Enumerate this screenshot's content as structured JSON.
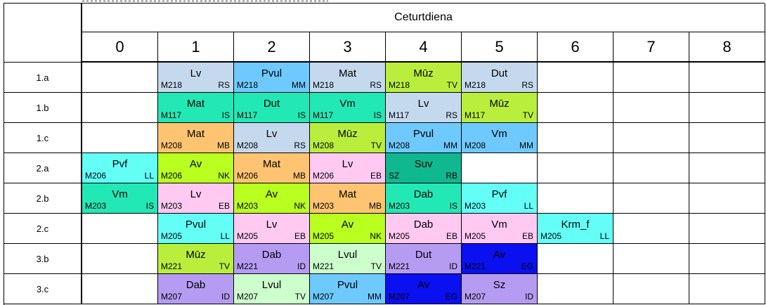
{
  "day": "Ceturtdiena",
  "periods": [
    "0",
    "1",
    "2",
    "3",
    "4",
    "5",
    "6",
    "7",
    "8"
  ],
  "colors": {
    "Lv": "#c5d9ee",
    "Pvul": "#6ec9ff",
    "Mat": "#c5d9ee",
    "Muz": "#b9ef3c",
    "Dut": "#c5d9ee",
    "mint": "#22e8b6",
    "orange": "#ffc471",
    "cyan": "#63fff7",
    "lime": "#b9ff1f",
    "pink": "#ffc9f2",
    "teal": "#10b890",
    "lavender": "#b59cf2",
    "paleGreen": "#ccffcc",
    "blue": "#0a10f0"
  },
  "classes": [
    {
      "name": "1.a",
      "lessons": [
        {
          "p": 1,
          "subj": "Lv",
          "room": "M218",
          "teacher": "RS",
          "color": "#c5d9ee"
        },
        {
          "p": 2,
          "subj": "Pvul",
          "room": "M218",
          "teacher": "MM",
          "color": "#6ec9ff"
        },
        {
          "p": 3,
          "subj": "Mat",
          "room": "M218",
          "teacher": "RS",
          "color": "#c5d9ee"
        },
        {
          "p": 4,
          "subj": "Mūz",
          "room": "M218",
          "teacher": "TV",
          "color": "#b9ef3c"
        },
        {
          "p": 5,
          "subj": "Dut",
          "room": "M218",
          "teacher": "RS",
          "color": "#c5d9ee"
        }
      ]
    },
    {
      "name": "1.b",
      "lessons": [
        {
          "p": 1,
          "subj": "Mat",
          "room": "M117",
          "teacher": "IS",
          "color": "#22e8b6"
        },
        {
          "p": 2,
          "subj": "Dut",
          "room": "M117",
          "teacher": "IS",
          "color": "#22e8b6"
        },
        {
          "p": 3,
          "subj": "Vm",
          "room": "M117",
          "teacher": "IS",
          "color": "#22e8b6"
        },
        {
          "p": 4,
          "subj": "Lv",
          "room": "M117",
          "teacher": "RS",
          "color": "#c5d9ee"
        },
        {
          "p": 5,
          "subj": "Mūz",
          "room": "M117",
          "teacher": "TV",
          "color": "#b9ef3c"
        }
      ]
    },
    {
      "name": "1.c",
      "lessons": [
        {
          "p": 1,
          "subj": "Mat",
          "room": "M208",
          "teacher": "MB",
          "color": "#ffc471"
        },
        {
          "p": 2,
          "subj": "Lv",
          "room": "M208",
          "teacher": "RS",
          "color": "#c5d9ee"
        },
        {
          "p": 3,
          "subj": "Mūz",
          "room": "M208",
          "teacher": "TV",
          "color": "#b9ef3c"
        },
        {
          "p": 4,
          "subj": "Pvul",
          "room": "M208",
          "teacher": "MM",
          "color": "#6ec9ff"
        },
        {
          "p": 5,
          "subj": "Vm",
          "room": "M208",
          "teacher": "MM",
          "color": "#6ec9ff"
        }
      ]
    },
    {
      "name": "2.a",
      "lessons": [
        {
          "p": 0,
          "subj": "Pvf",
          "room": "M206",
          "teacher": "LL",
          "color": "#63fff7"
        },
        {
          "p": 1,
          "subj": "Av",
          "room": "M206",
          "teacher": "NK",
          "color": "#b9ff1f"
        },
        {
          "p": 2,
          "subj": "Mat",
          "room": "M206",
          "teacher": "MB",
          "color": "#ffc471"
        },
        {
          "p": 3,
          "subj": "Lv",
          "room": "M206",
          "teacher": "EB",
          "color": "#ffc9f2"
        },
        {
          "p": 4,
          "subj": "Suv",
          "room": "SZ",
          "teacher": "RB",
          "color": "#10b890"
        }
      ]
    },
    {
      "name": "2.b",
      "lessons": [
        {
          "p": 0,
          "subj": "Vm",
          "room": "M203",
          "teacher": "IS",
          "color": "#22e8b6"
        },
        {
          "p": 1,
          "subj": "Lv",
          "room": "M203",
          "teacher": "EB",
          "color": "#ffc9f2"
        },
        {
          "p": 2,
          "subj": "Av",
          "room": "M203",
          "teacher": "NK",
          "color": "#b9ff1f"
        },
        {
          "p": 3,
          "subj": "Mat",
          "room": "M203",
          "teacher": "MB",
          "color": "#ffc471"
        },
        {
          "p": 4,
          "subj": "Dab",
          "room": "M203",
          "teacher": "IS",
          "color": "#22e8b6"
        },
        {
          "p": 5,
          "subj": "Pvf",
          "room": "M203",
          "teacher": "LL",
          "color": "#63fff7"
        }
      ]
    },
    {
      "name": "2.c",
      "lessons": [
        {
          "p": 1,
          "subj": "Pvul",
          "room": "M205",
          "teacher": "LL",
          "color": "#63fff7"
        },
        {
          "p": 2,
          "subj": "Lv",
          "room": "M205",
          "teacher": "EB",
          "color": "#ffc9f2"
        },
        {
          "p": 3,
          "subj": "Av",
          "room": "M205",
          "teacher": "NK",
          "color": "#b9ff1f"
        },
        {
          "p": 4,
          "subj": "Dab",
          "room": "M205",
          "teacher": "EB",
          "color": "#ffc9f2"
        },
        {
          "p": 5,
          "subj": "Vm",
          "room": "M205",
          "teacher": "EB",
          "color": "#ffc9f2"
        },
        {
          "p": 6,
          "subj": "Krm_f",
          "room": "M205",
          "teacher": "LL",
          "color": "#63fff7"
        }
      ]
    },
    {
      "name": "3.b",
      "lessons": [
        {
          "p": 1,
          "subj": "Mūz",
          "room": "M221",
          "teacher": "TV",
          "color": "#b9ef3c"
        },
        {
          "p": 2,
          "subj": "Dab",
          "room": "M221",
          "teacher": "ID",
          "color": "#b59cf2"
        },
        {
          "p": 3,
          "subj": "Lvul",
          "room": "M221",
          "teacher": "TV",
          "color": "#ccffcc"
        },
        {
          "p": 4,
          "subj": "Dut",
          "room": "M221",
          "teacher": "ID",
          "color": "#b59cf2"
        },
        {
          "p": 5,
          "subj": "Av",
          "room": "M221",
          "teacher": "EG",
          "color": "#0a10f0"
        }
      ]
    },
    {
      "name": "3.c",
      "lessons": [
        {
          "p": 1,
          "subj": "Dab",
          "room": "M207",
          "teacher": "ID",
          "color": "#b59cf2"
        },
        {
          "p": 2,
          "subj": "Lvul",
          "room": "M207",
          "teacher": "TV",
          "color": "#ccffcc"
        },
        {
          "p": 3,
          "subj": "Pvul",
          "room": "M207",
          "teacher": "MM",
          "color": "#6ec9ff"
        },
        {
          "p": 4,
          "subj": "Av",
          "room": "M207",
          "teacher": "EG",
          "color": "#0a10f0"
        },
        {
          "p": 5,
          "subj": "Sz",
          "room": "M207",
          "teacher": "ID",
          "color": "#b59cf2"
        }
      ]
    }
  ]
}
